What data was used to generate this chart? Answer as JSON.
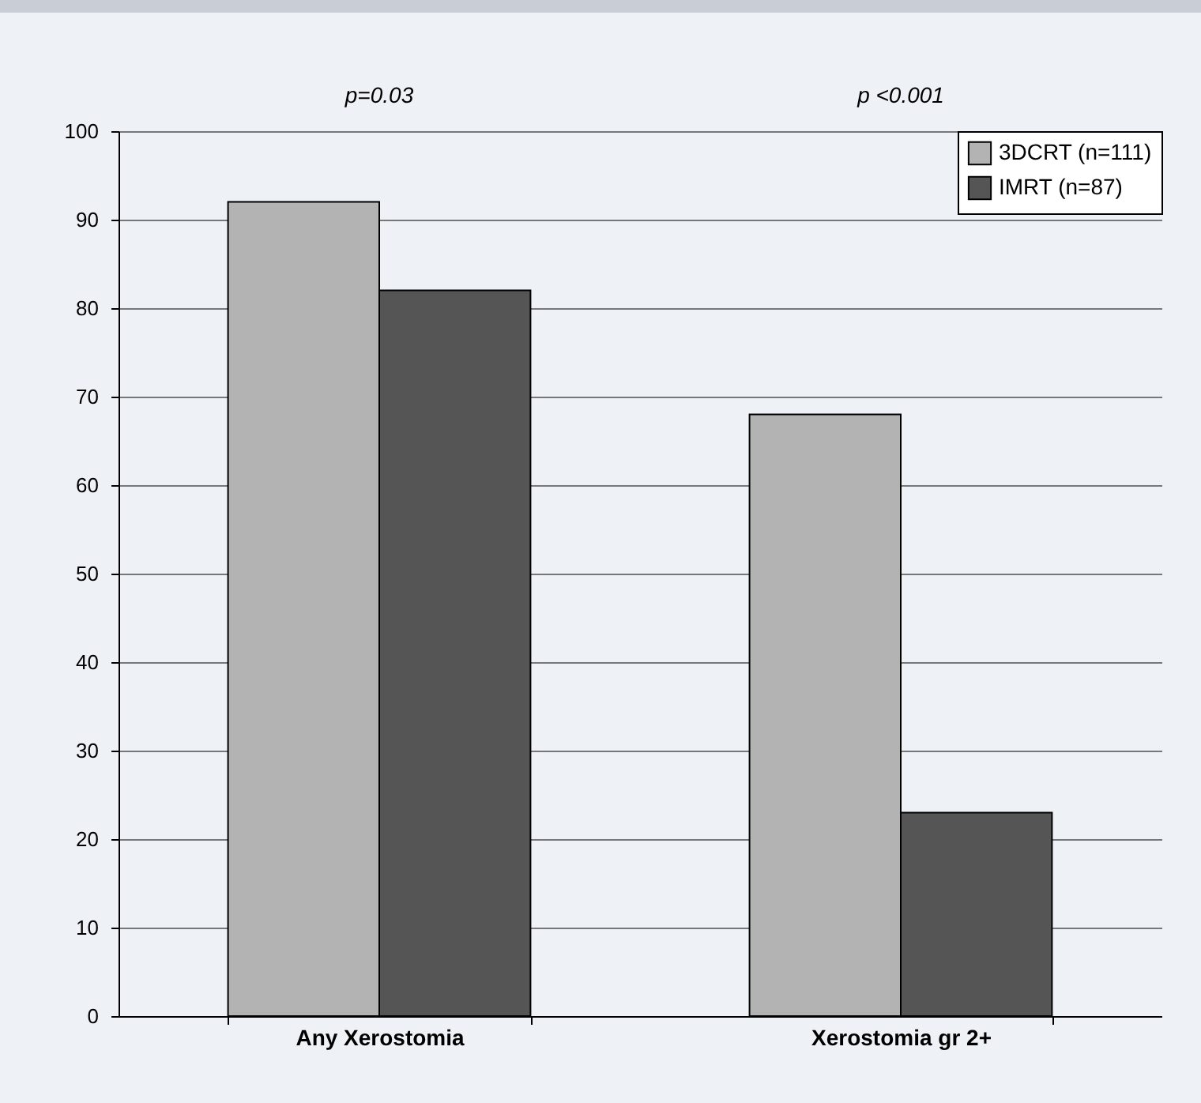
{
  "chart_data": {
    "type": "bar",
    "categories": [
      "Any Xerostomia",
      "Xerostomia gr 2+"
    ],
    "series": [
      {
        "name": "3DCRT (n=111)",
        "color": "#b3b3b3",
        "values": [
          92,
          68
        ]
      },
      {
        "name": "IMRT (n=87)",
        "color": "#555555",
        "values": [
          82,
          23
        ]
      }
    ],
    "ylim": [
      0,
      100
    ],
    "yticks": [
      0,
      10,
      20,
      30,
      40,
      50,
      60,
      70,
      80,
      90,
      100
    ],
    "grid": "y",
    "legend": "top right",
    "annotations": [
      "p=0.03",
      "p <0.001"
    ]
  }
}
